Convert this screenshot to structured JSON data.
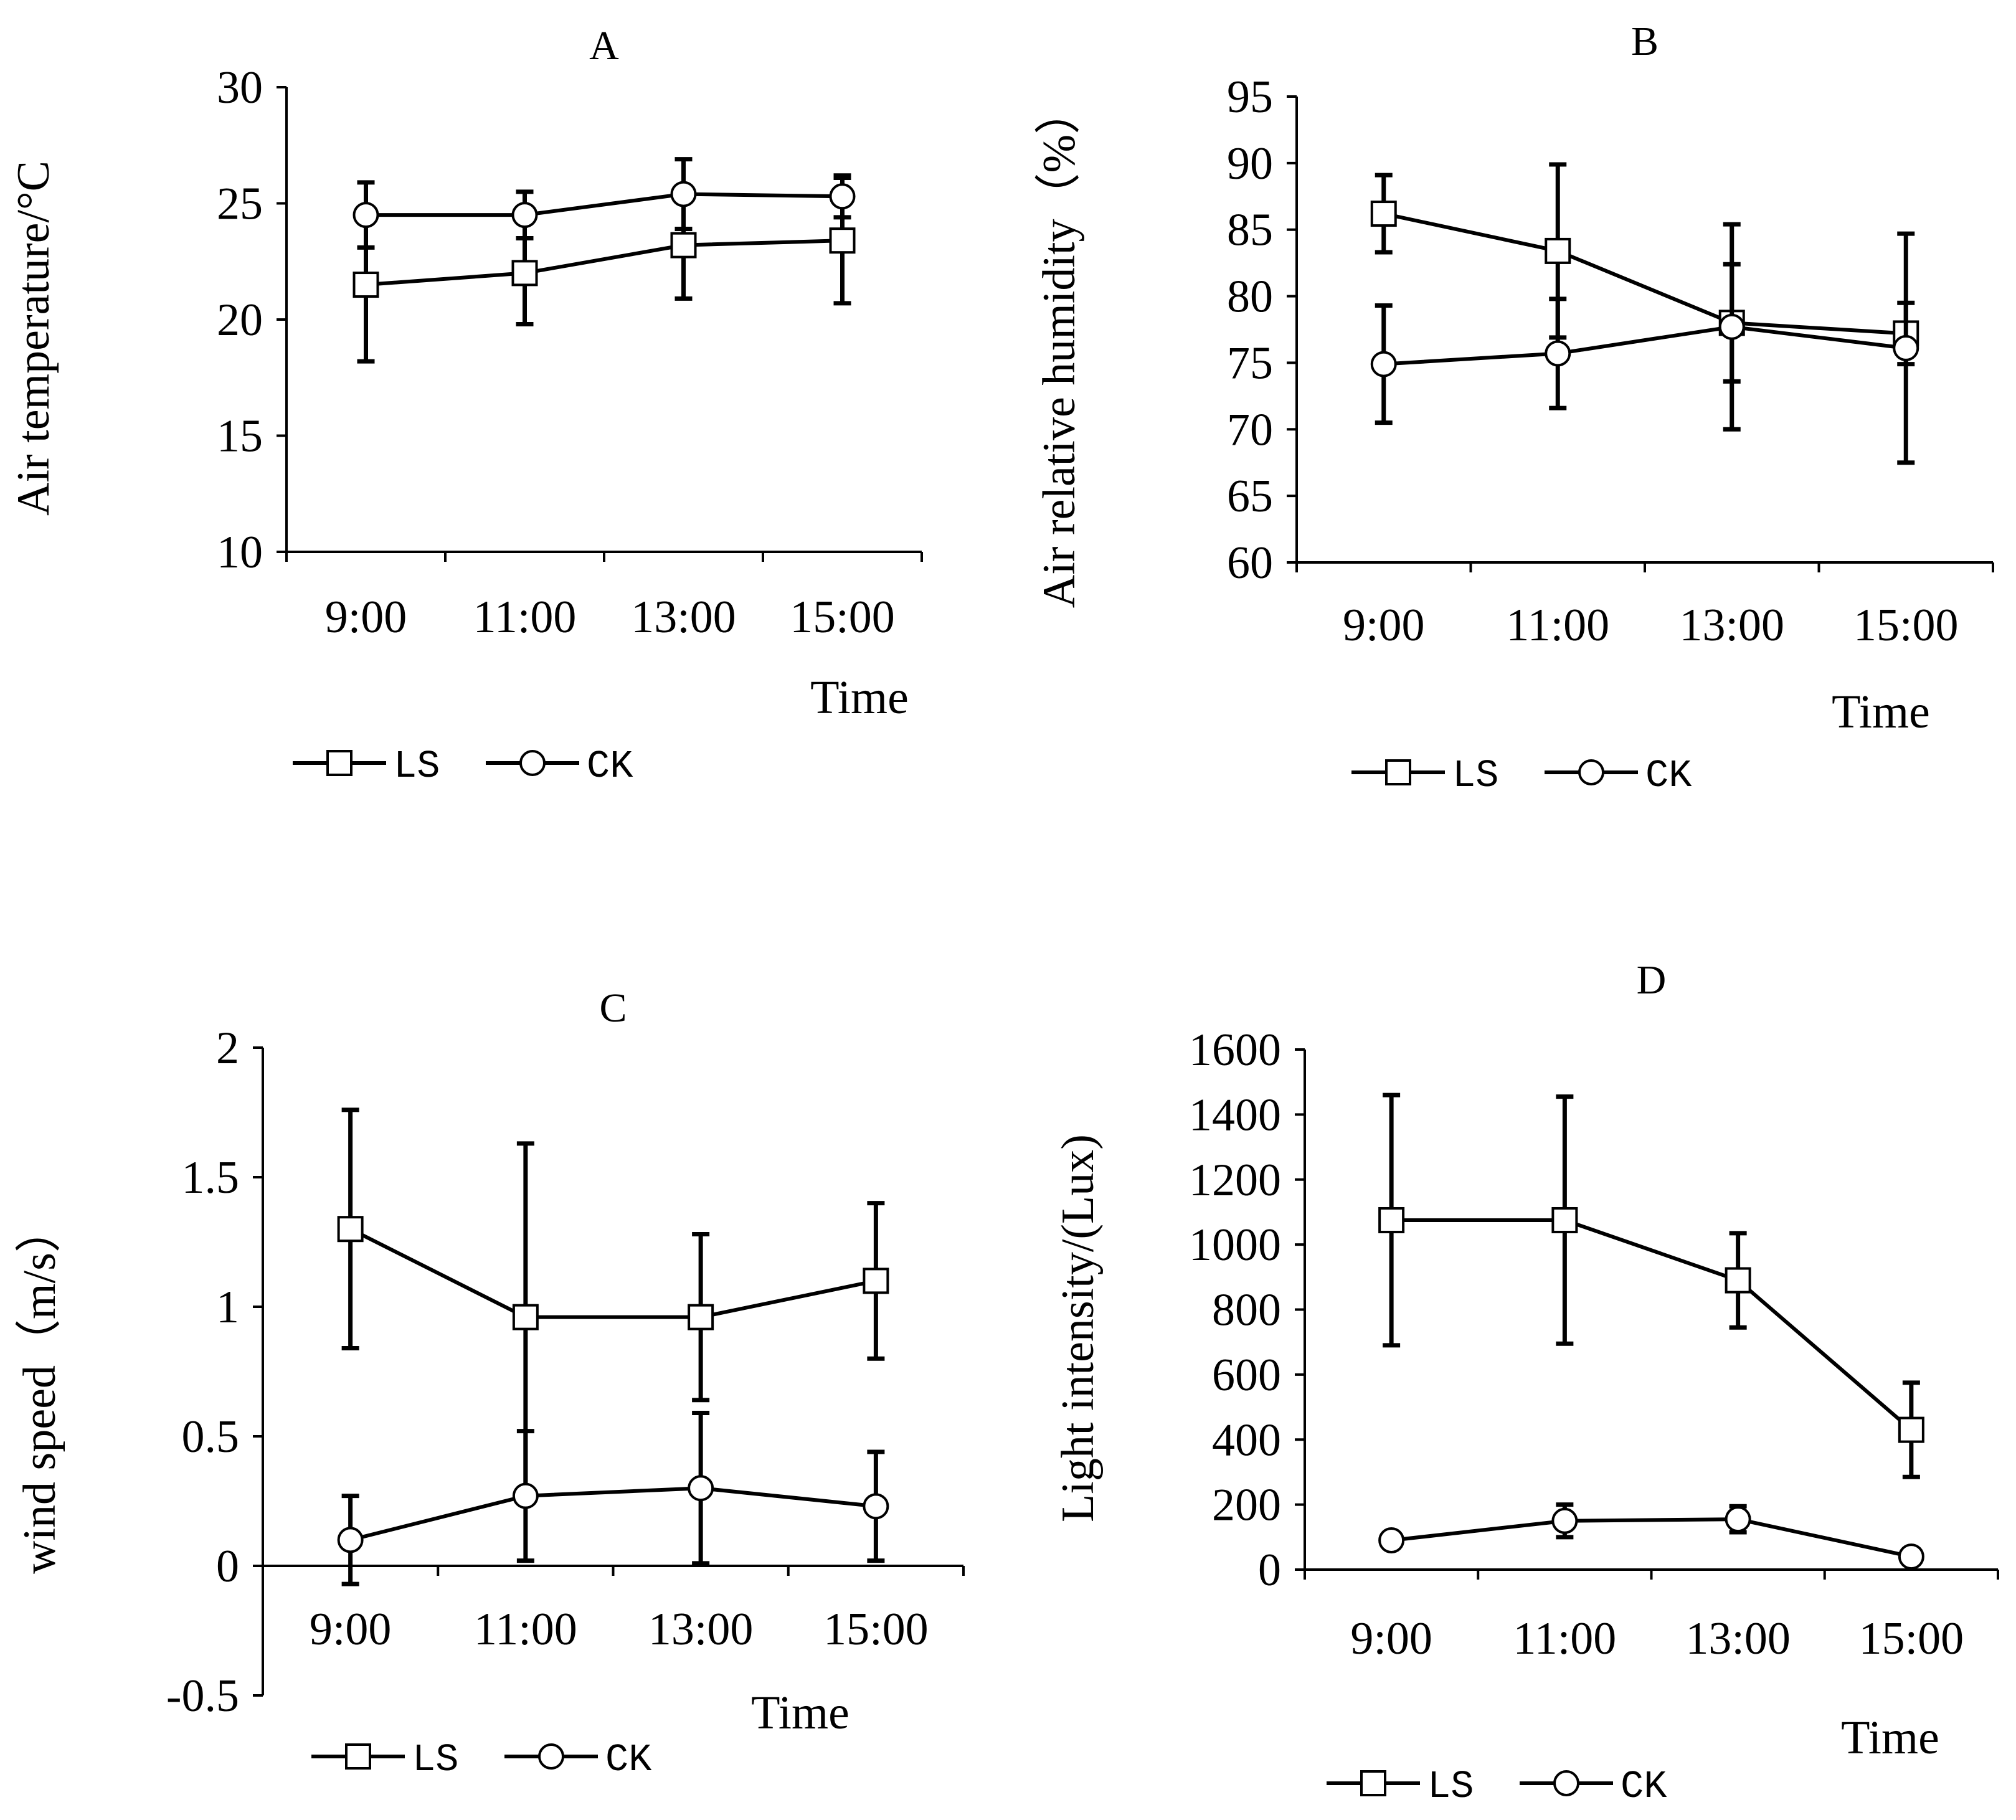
{
  "chart_data": [
    {
      "panel": "A",
      "type": "line",
      "title": "A",
      "xlabel": "Time",
      "ylabel": "Air temperature/°C",
      "categories": [
        "9:00",
        "11:00",
        "13:00",
        "15:00"
      ],
      "ylim": [
        10,
        30
      ],
      "yticks": [
        "10",
        "15",
        "20",
        "25",
        "30"
      ],
      "ytick_values": [
        10,
        15,
        20,
        25,
        30
      ],
      "legend": [
        "LS",
        "CK"
      ],
      "series": [
        {
          "name": "LS",
          "marker": "square",
          "values": [
            21.5,
            22.0,
            23.2,
            23.4
          ],
          "errors": [
            3.3,
            2.2,
            2.3,
            2.7
          ]
        },
        {
          "name": "CK",
          "marker": "circle",
          "values": [
            24.5,
            24.5,
            25.4,
            25.3
          ],
          "errors": [
            1.4,
            1.0,
            1.5,
            0.9
          ]
        }
      ]
    },
    {
      "panel": "B",
      "type": "line",
      "title": "B",
      "xlabel": "Time",
      "ylabel": "Air relative humidity（%）",
      "categories": [
        "9:00",
        "11:00",
        "13:00",
        "15:00"
      ],
      "ylim": [
        60,
        95
      ],
      "yticks": [
        "60",
        "65",
        "70",
        "75",
        "80",
        "85",
        "90",
        "95"
      ],
      "ytick_values": [
        60,
        65,
        70,
        75,
        80,
        85,
        90,
        95
      ],
      "legend": [
        "LS",
        "CK"
      ],
      "series": [
        {
          "name": "LS",
          "marker": "square",
          "values": [
            86.2,
            83.4,
            78.0,
            77.2
          ],
          "errors": [
            2.9,
            6.5,
            4.4,
            2.3
          ]
        },
        {
          "name": "CK",
          "marker": "circle",
          "values": [
            74.9,
            75.7,
            77.7,
            76.1
          ],
          "errors": [
            4.4,
            4.1,
            7.7,
            8.6
          ]
        }
      ]
    },
    {
      "panel": "C",
      "type": "line",
      "title": "C",
      "xlabel": "Time",
      "ylabel": "wind speed（m/s）",
      "categories": [
        "9:00",
        "11:00",
        "13:00",
        "15:00"
      ],
      "ylim": [
        -0.5,
        2
      ],
      "yticks": [
        "-0.5",
        "0",
        "0.5",
        "1",
        "1.5",
        "2"
      ],
      "ytick_values": [
        -0.5,
        0,
        0.5,
        1,
        1.5,
        2
      ],
      "legend": [
        "LS",
        "CK"
      ],
      "series": [
        {
          "name": "LS",
          "marker": "square",
          "values": [
            1.3,
            0.96,
            0.96,
            1.1
          ],
          "errors": [
            0.46,
            0.67,
            0.32,
            0.3
          ]
        },
        {
          "name": "CK",
          "marker": "circle",
          "values": [
            0.1,
            0.27,
            0.3,
            0.23
          ],
          "errors": [
            0.17,
            0.25,
            0.29,
            0.21
          ]
        }
      ]
    },
    {
      "panel": "D",
      "type": "line",
      "title": "D",
      "xlabel": "Time",
      "ylabel": "Light intensity/(Lux)",
      "categories": [
        "9:00",
        "11:00",
        "13:00",
        "15:00"
      ],
      "ylim": [
        0,
        1600
      ],
      "yticks": [
        "0",
        "200",
        "400",
        "600",
        "800",
        "1000",
        "1200",
        "1400",
        "1600"
      ],
      "ytick_values": [
        0,
        200,
        400,
        600,
        800,
        1000,
        1200,
        1400,
        1600
      ],
      "legend": [
        "LS",
        "CK"
      ],
      "series": [
        {
          "name": "LS",
          "marker": "square",
          "values": [
            1075,
            1075,
            890,
            430
          ],
          "errors": [
            385,
            380,
            145,
            145
          ]
        },
        {
          "name": "CK",
          "marker": "circle",
          "values": [
            90,
            150,
            155,
            40
          ],
          "errors": [
            20,
            50,
            40,
            10
          ]
        }
      ]
    }
  ]
}
